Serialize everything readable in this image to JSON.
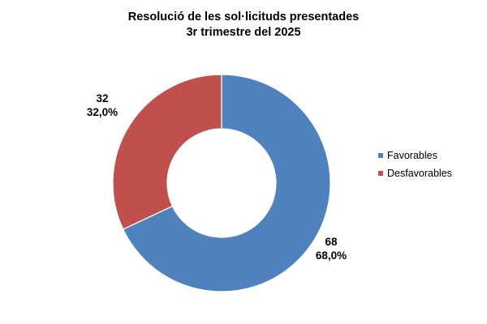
{
  "chart_data": {
    "type": "pie",
    "variant": "donut",
    "title": "Resolució de les sol·licituds presentades",
    "subtitle": "3r trimestre del 2025",
    "categories": [
      "Favorables",
      "Desfavorables"
    ],
    "values": [
      68,
      32
    ],
    "percent_labels": [
      "68,0%",
      "32,0%"
    ],
    "colors": [
      "#4F81BD",
      "#C0504D"
    ],
    "legend_position": "right"
  }
}
